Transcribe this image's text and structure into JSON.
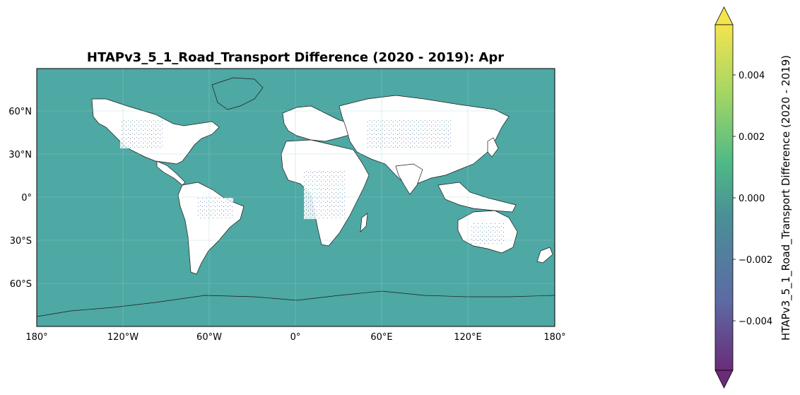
{
  "title": "HTAPv3_5_1_Road_Transport Difference (2020 - 2019): Apr",
  "map": {
    "projection": "PlateCarree",
    "background_color": "#4ea8a4",
    "land_color": "#ffffff",
    "coastline_color": "#000000",
    "x_ticks": [
      "180°",
      "120°W",
      "60°W",
      "0°",
      "60°E",
      "120°E",
      "180°"
    ],
    "y_ticks": [
      "60°N",
      "30°N",
      "0°",
      "30°S",
      "60°S"
    ]
  },
  "colorbar": {
    "label": "HTAPv3_5_1_Road_Transport Difference (2020 - 2019)",
    "ticks": [
      "0.004",
      "0.002",
      "0.000",
      "−0.002",
      "−0.004"
    ],
    "tick_values": [
      0.004,
      0.002,
      0.0,
      -0.002,
      -0.004
    ],
    "range": [
      -0.0055,
      0.0055
    ],
    "extend": "both",
    "colormap": "viridis",
    "colors": [
      "#6a2c78",
      "#5d6aa4",
      "#4a9097",
      "#4fb987",
      "#a3d664",
      "#f3e44e"
    ]
  }
}
